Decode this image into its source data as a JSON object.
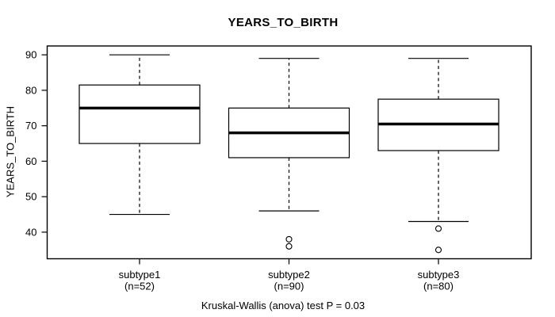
{
  "chart_data": {
    "type": "boxplot",
    "title": "YEARS_TO_BIRTH",
    "ylabel": "YEARS_TO_BIRTH",
    "footer": "Kruskal-Wallis (anova) test P = 0.03",
    "y_ticks": [
      40,
      50,
      60,
      70,
      80,
      90
    ],
    "ylim": [
      32.5,
      92.5
    ],
    "grid": false,
    "legend": "none",
    "groups": [
      {
        "label": "subtype1",
        "n_label": "(n=52)",
        "whisker_low": 45,
        "q1": 65,
        "median": 75,
        "q3": 81.5,
        "whisker_high": 90,
        "outliers": []
      },
      {
        "label": "subtype2",
        "n_label": "(n=90)",
        "whisker_low": 46,
        "q1": 61,
        "median": 68,
        "q3": 75,
        "whisker_high": 89,
        "outliers": [
          38,
          36
        ]
      },
      {
        "label": "subtype3",
        "n_label": "(n=80)",
        "whisker_low": 43,
        "q1": 63,
        "median": 70.5,
        "q3": 77.5,
        "whisker_high": 89,
        "outliers": [
          41,
          35
        ]
      }
    ],
    "colors": {
      "stroke": "#000000",
      "box_fill": "#ffffff",
      "background": "#ffffff"
    }
  }
}
